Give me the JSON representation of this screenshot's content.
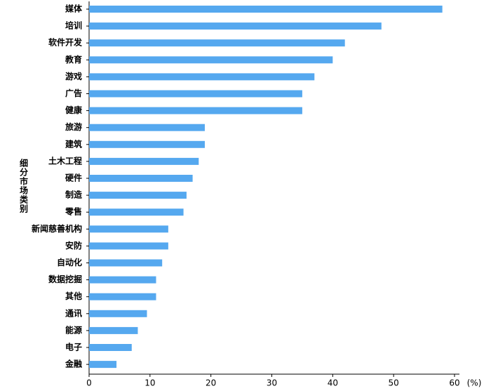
{
  "chart_data": {
    "type": "barh",
    "ylabel": "细分市场类别",
    "xlabel": "(%)",
    "categories": [
      "媒体",
      "培训",
      "软件开发",
      "教育",
      "游戏",
      "广告",
      "健康",
      "旅游",
      "建筑",
      "土木工程",
      "硬件",
      "制造",
      "零售",
      "新闻慈善机构",
      "安防",
      "自动化",
      "数据挖掘",
      "其他",
      "通讯",
      "能源",
      "电子",
      "金融"
    ],
    "values": [
      58,
      48,
      42,
      40,
      37,
      35,
      35,
      19,
      19,
      18,
      17,
      16,
      15.5,
      13,
      13,
      12,
      11,
      11,
      9.5,
      8,
      7,
      4.5
    ],
    "color": "#55a8ef",
    "xlim": [
      0,
      60
    ],
    "xticks": [
      0,
      10,
      20,
      30,
      40,
      50,
      60
    ]
  }
}
